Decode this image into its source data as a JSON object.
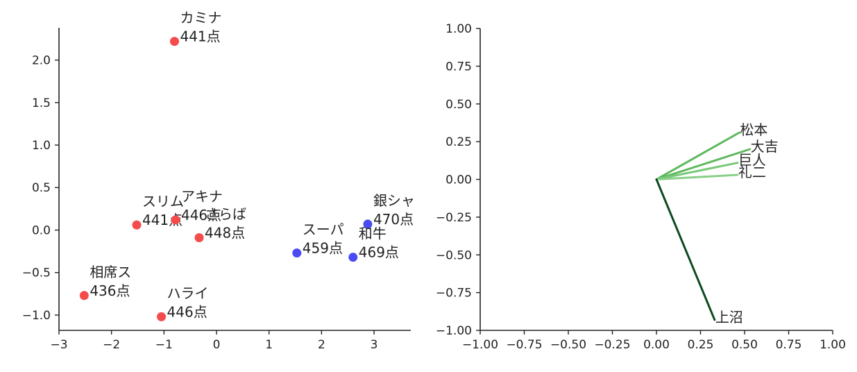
{
  "chart_data": [
    {
      "type": "scatter",
      "xlim": [
        -3,
        3.7
      ],
      "ylim": [
        -1.18,
        2.38
      ],
      "xticks": [
        -3,
        -2,
        -1,
        0,
        1,
        2,
        3
      ],
      "xtick_labels": [
        "−3",
        "−2",
        "−1",
        "0",
        "1",
        "2",
        "3"
      ],
      "yticks": [
        -1.0,
        -0.5,
        0.0,
        0.5,
        1.0,
        1.5,
        2.0
      ],
      "ytick_labels": [
        "−1.0",
        "−0.5",
        "0.0",
        "0.5",
        "1.0",
        "1.5",
        "2.0"
      ],
      "grid": false,
      "colors": {
        "red": "#f54b4b",
        "blue": "#4b4bf5"
      },
      "points": [
        {
          "name": "カミナ",
          "score": "441点",
          "x": -0.8,
          "y": 2.22,
          "color": "red"
        },
        {
          "name": "スリム",
          "score": "441点",
          "x": -1.52,
          "y": 0.06,
          "color": "red"
        },
        {
          "name": "アキナ",
          "score": "446点",
          "x": -0.78,
          "y": 0.12,
          "color": "red"
        },
        {
          "name": "さらば",
          "score": "448点",
          "x": -0.33,
          "y": -0.09,
          "color": "red"
        },
        {
          "name": "相席ス",
          "score": "436点",
          "x": -2.52,
          "y": -0.77,
          "color": "red"
        },
        {
          "name": "ハライ",
          "score": "446点",
          "x": -1.05,
          "y": -1.02,
          "color": "red"
        },
        {
          "name": "スーパ",
          "score": "459点",
          "x": 1.53,
          "y": -0.27,
          "color": "blue"
        },
        {
          "name": "銀シャ",
          "score": "470点",
          "x": 2.88,
          "y": 0.07,
          "color": "blue"
        },
        {
          "name": "和牛",
          "score": "469点",
          "x": 2.6,
          "y": -0.32,
          "color": "blue"
        }
      ]
    },
    {
      "type": "line",
      "xlim": [
        -1.0,
        1.0
      ],
      "ylim": [
        -1.0,
        1.0
      ],
      "xticks": [
        -1.0,
        -0.75,
        -0.5,
        -0.25,
        0.0,
        0.25,
        0.5,
        0.75,
        1.0
      ],
      "xtick_labels": [
        "−1.00",
        "−0.75",
        "−0.50",
        "−0.25",
        "0.00",
        "0.25",
        "0.50",
        "0.75",
        "1.00"
      ],
      "yticks": [
        -1.0,
        -0.75,
        -0.5,
        -0.25,
        0.0,
        0.25,
        0.5,
        0.75,
        1.0
      ],
      "ytick_labels": [
        "−1.00",
        "−0.75",
        "−0.50",
        "−0.25",
        "0.00",
        "0.25",
        "0.50",
        "0.75",
        "1.00"
      ],
      "grid": false,
      "vectors": [
        {
          "name": "松本",
          "x": 0.47,
          "y": 0.31,
          "color": "#5cb85c"
        },
        {
          "name": "大吉",
          "x": 0.53,
          "y": 0.2,
          "color": "#60b860"
        },
        {
          "name": "巨人",
          "x": 0.46,
          "y": 0.11,
          "color": "#78c878"
        },
        {
          "name": "礼二",
          "x": 0.46,
          "y": 0.03,
          "color": "#88cf88"
        },
        {
          "name": "上沼",
          "x": 0.33,
          "y": -0.93,
          "color": "#0b4a1f"
        }
      ]
    }
  ]
}
